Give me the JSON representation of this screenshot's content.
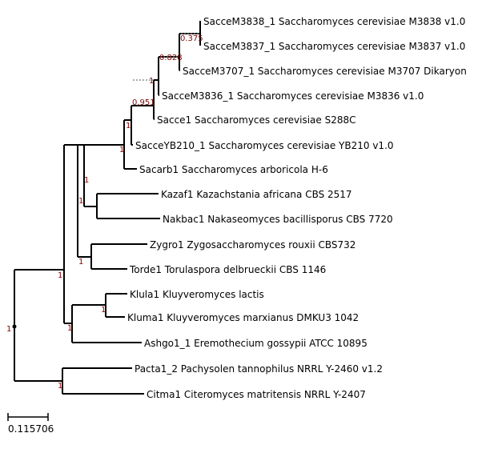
{
  "tree": {
    "leaves": [
      {
        "id": "m3838",
        "label": "SacceM3838_1 Saccharomyces cerevisiae M3838 v1.0"
      },
      {
        "id": "m3837",
        "label": "SacceM3837_1 Saccharomyces cerevisiae M3837 v1.0"
      },
      {
        "id": "m3707",
        "label": "SacceM3707_1 Saccharomyces cerevisiae M3707 Dikaryon"
      },
      {
        "id": "m3836",
        "label": "SacceM3836_1 Saccharomyces cerevisiae M3836 v1.0"
      },
      {
        "id": "s288c",
        "label": "Sacce1 Saccharomyces cerevisiae S288C"
      },
      {
        "id": "yb210",
        "label": "SacceYB210_1 Saccharomyces cerevisiae YB210 v1.0"
      },
      {
        "id": "sacarb",
        "label": "Sacarb1 Saccharomyces arboricola H-6"
      },
      {
        "id": "kazaf",
        "label": "Kazaf1 Kazachstania africana CBS 2517"
      },
      {
        "id": "nakbac",
        "label": "Nakbac1 Nakaseomyces bacillisporus CBS 7720"
      },
      {
        "id": "zygro",
        "label": "Zygro1 Zygosaccharomyces rouxii CBS732"
      },
      {
        "id": "torde",
        "label": "Torde1 Torulaspora delbrueckii CBS 1146"
      },
      {
        "id": "klula",
        "label": "Klula1 Kluyveromyces lactis"
      },
      {
        "id": "kluma",
        "label": "Kluma1 Kluyveromyces marxianus DMKU3 1042"
      },
      {
        "id": "ashgo",
        "label": "Ashgo1_1 Eremothecium gossypii ATCC 10895"
      },
      {
        "id": "pacta",
        "label": "Pacta1_2 Pachysolen tannophilus NRRL Y-2460 v1.2"
      },
      {
        "id": "citma",
        "label": "Citma1 Citeromyces matritensis NRRL Y-2407"
      }
    ],
    "support_values": {
      "root": "1",
      "m3838_m3837": "0.375",
      "m3707_clade": "0.828",
      "m3836_clade": "0.951",
      "s288c_clade": "1",
      "yb210_clade": "1",
      "kazaf_nakbac": "1",
      "saccharomycetaceae": "1",
      "zygro_torde": "1",
      "kluyveromyces": "1",
      "klula_kluma": "1",
      "ashgo_clade": "1",
      "pacta_citma": "1"
    },
    "support_colors": {
      "high": "#8b0000",
      "root": "#000000",
      "low": "#7a0a0a"
    }
  },
  "scale_bar": {
    "label": "0.115706"
  }
}
